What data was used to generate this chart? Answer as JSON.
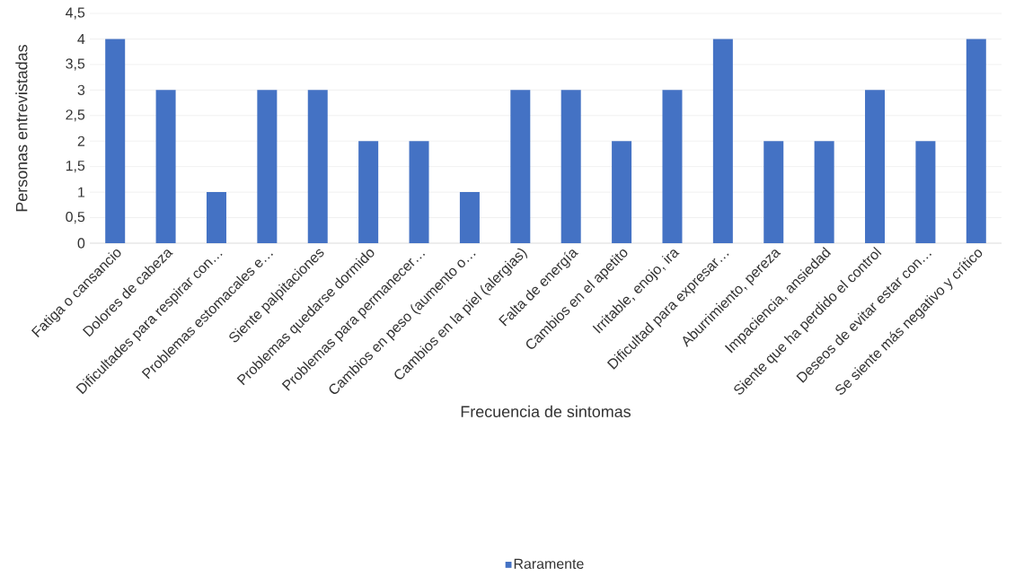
{
  "chart_data": {
    "type": "bar",
    "xlabel": "Frecuencia de sintomas",
    "ylabel": "Personas entrevistadas",
    "categories": [
      "Fatiga o cansancio",
      "Dolores de cabeza",
      "Dificultades para respirar con…",
      "Problemas estomacales e…",
      "Siente palpitaciones",
      "Problemas quedarse dormido",
      "Problemas para permanecer…",
      "Cambios en peso (aumento o…",
      "Cambios en la piel (alergias)",
      "Falta de energía",
      "Cambios en el apetito",
      "Irritable, enojo, ira",
      "Dificultad para expresar…",
      "Aburrimiento, pereza",
      "Impaciencia, ansiedad",
      "Siente que ha perdido el control",
      "Deseos de evitar estar con…",
      "Se siente más negativo y crítico"
    ],
    "series": [
      {
        "name": "Raramente",
        "color": "#4472c4",
        "values": [
          4,
          3,
          1,
          3,
          3,
          2,
          2,
          1,
          3,
          3,
          2,
          3,
          4,
          2,
          2,
          3,
          2,
          4
        ]
      }
    ],
    "ylim": [
      0,
      4.5
    ],
    "yticks": [
      0,
      {
        "value": 0.5,
        "label": "0,5"
      },
      1,
      {
        "value": 1.5,
        "label": "1,5"
      },
      2,
      {
        "value": 2.5,
        "label": "2,5"
      },
      3,
      {
        "value": 3.5,
        "label": "3,5"
      },
      4,
      {
        "value": 4.5,
        "label": "4,5"
      }
    ],
    "grid": "y",
    "legend": "bottom"
  }
}
